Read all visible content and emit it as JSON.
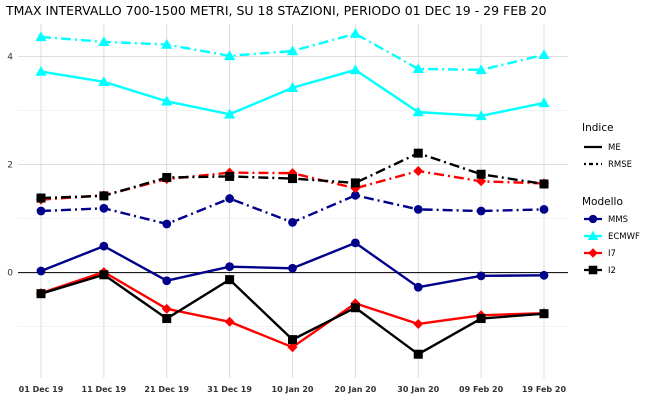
{
  "chart_data": {
    "type": "line",
    "title": "TMAX INTERVALLO 700-1500 METRI, SU 18 STAZIONI, PERIODO 01 DEC 19  -  29 FEB 20",
    "xlabel": "",
    "ylabel": "",
    "categories": [
      "01 Dec 19",
      "11 Dec 19",
      "21 Dec 19",
      "31 Dec 19",
      "10 Jan 20",
      "20 Jan 20",
      "30 Jan 20",
      "09 Feb 20",
      "19 Feb 20"
    ],
    "y_ticks": [
      0,
      2,
      4
    ],
    "ylim": [
      -1.95,
      4.6
    ],
    "grid": true,
    "zero_line": true,
    "series": [
      {
        "model": "MMS",
        "indice": "ME",
        "color": "#00008b",
        "marker": "circle",
        "values": [
          0.03,
          0.49,
          -0.15,
          0.11,
          0.08,
          0.55,
          -0.27,
          -0.06,
          -0.05
        ]
      },
      {
        "model": "MMS",
        "indice": "RMSE",
        "color": "#00008b",
        "marker": "circle",
        "values": [
          1.14,
          1.19,
          0.9,
          1.37,
          0.93,
          1.43,
          1.17,
          1.14,
          1.17
        ]
      },
      {
        "model": "ECMWF",
        "indice": "ME",
        "color": "#00ffff",
        "marker": "triangle",
        "values": [
          3.72,
          3.53,
          3.17,
          2.93,
          3.42,
          3.75,
          2.97,
          2.9,
          3.14
        ]
      },
      {
        "model": "ECMWF",
        "indice": "RMSE",
        "color": "#00ffff",
        "marker": "triangle",
        "values": [
          4.36,
          4.27,
          4.22,
          4.01,
          4.1,
          4.42,
          3.77,
          3.75,
          4.03
        ]
      },
      {
        "model": "I7",
        "indice": "ME",
        "color": "#ff0000",
        "marker": "diamond",
        "values": [
          -0.38,
          0.01,
          -0.67,
          -0.91,
          -1.38,
          -0.57,
          -0.95,
          -0.79,
          -0.75
        ]
      },
      {
        "model": "I7",
        "indice": "RMSE",
        "color": "#ff0000",
        "marker": "diamond",
        "values": [
          1.35,
          1.43,
          1.73,
          1.85,
          1.84,
          1.56,
          1.88,
          1.69,
          1.65
        ]
      },
      {
        "model": "I2",
        "indice": "ME",
        "color": "#000000",
        "marker": "square",
        "values": [
          -0.39,
          -0.04,
          -0.85,
          -0.13,
          -1.24,
          -0.65,
          -1.51,
          -0.85,
          -0.76
        ]
      },
      {
        "model": "I2",
        "indice": "RMSE",
        "color": "#000000",
        "marker": "square",
        "values": [
          1.38,
          1.42,
          1.76,
          1.78,
          1.74,
          1.66,
          2.21,
          1.82,
          1.64
        ]
      }
    ],
    "legend": {
      "placement": "right",
      "indice_title": "Indice",
      "indice": [
        {
          "label": "ME",
          "dash": "solid"
        },
        {
          "label": "RMSE",
          "dash": "dotdash"
        }
      ],
      "modello_title": "Modello",
      "modello": [
        {
          "label": "MMS",
          "color": "#00008b",
          "marker": "circle"
        },
        {
          "label": "ECMWF",
          "color": "#00ffff",
          "marker": "triangle"
        },
        {
          "label": "I7",
          "color": "#ff0000",
          "marker": "diamond"
        },
        {
          "label": "I2",
          "color": "#000000",
          "marker": "square"
        }
      ]
    }
  }
}
